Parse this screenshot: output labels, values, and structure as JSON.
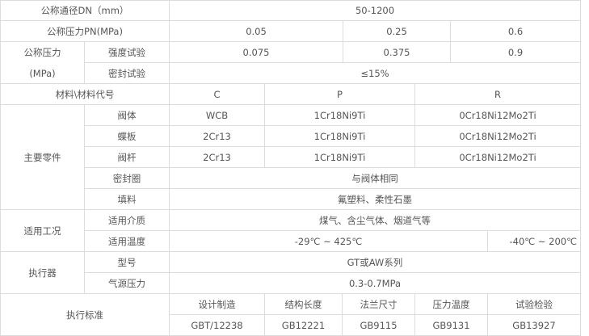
{
  "nominal_diameter": {
    "label": "公称通径DN（mm）",
    "value": "50-1200"
  },
  "nominal_pressure_pn": {
    "label": "公称压力PN(MPa)",
    "values": [
      "0.05",
      "0.25",
      "0.6"
    ]
  },
  "test_pressure": {
    "label_line1": "公称压力",
    "label_line2": "(MPa)",
    "strength": {
      "label": "强度试验",
      "values": [
        "0.075",
        "0.375",
        "0.9"
      ]
    },
    "seal": {
      "label": "密封试验",
      "value": "≤15%"
    }
  },
  "material_code": {
    "label": "材料\\材料代号",
    "codes": [
      "C",
      "P",
      "R"
    ]
  },
  "main_parts": {
    "label": "主要零件",
    "rows": [
      {
        "part": "阀体",
        "values": [
          "WCB",
          "1Cr18Ni9Ti",
          "0Cr18Ni12Mo2Ti"
        ]
      },
      {
        "part": "蝶板",
        "values": [
          "2Cr13",
          "1Cr18Ni9Ti",
          "0Cr18Ni12Mo2Ti"
        ]
      },
      {
        "part": "阀杆",
        "values": [
          "2Cr13",
          "1Cr18Ni9Ti",
          "0Cr18Ni12Mo2Ti"
        ]
      }
    ],
    "seal_ring": {
      "part": "密封圈",
      "value": "与阀体相同"
    },
    "packing": {
      "part": "填料",
      "value": "氟塑料、柔性石墨"
    }
  },
  "conditions": {
    "label": "适用工况",
    "medium": {
      "label": "适用介质",
      "value": "煤气、含尘气体、烟道气等"
    },
    "temperature": {
      "label": "适用温度",
      "values": [
        "-29℃ ~ 425℃",
        "-40℃ ~ 200℃"
      ]
    }
  },
  "actuator": {
    "label": "执行器",
    "model": {
      "label": "型号",
      "value": "GT或AW系列"
    },
    "air_pressure": {
      "label": "气源压力",
      "value": "0.3-0.7MPa"
    }
  },
  "standards": {
    "label": "执行标准",
    "headers": [
      "设计制造",
      "结构长度",
      "法兰尺寸",
      "压力温度",
      "试验检验"
    ],
    "values": [
      "GBT/12238",
      "GB12221",
      "GB9115",
      "GB9131",
      "GB13927"
    ]
  }
}
